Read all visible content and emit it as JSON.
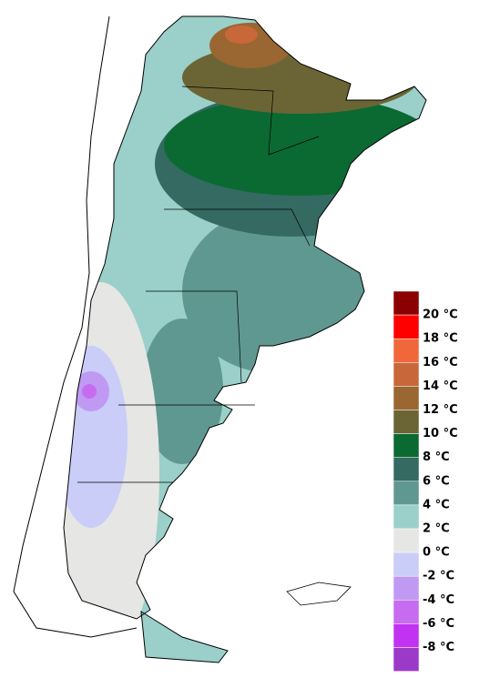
{
  "legend": {
    "labels": [
      "20 °C",
      "18 °C",
      "16 °C",
      "14 °C",
      "12 °C",
      "10 °C",
      "8 °C",
      "6 °C",
      "4 °C",
      "2 °C",
      "0 °C",
      "-2 °C",
      "-4 °C",
      "-6 °C",
      "-8 °C"
    ],
    "colors": [
      "#8b0000",
      "#ff0000",
      "#f0683a",
      "#c8683a",
      "#9a6632",
      "#6b6535",
      "#0b6a32",
      "#346a62",
      "#5f9890",
      "#9ad0c9",
      "#e6e6e4",
      "#c9cdf8",
      "#c09af2",
      "#c76cf0",
      "#c232f2",
      "#9b3ac8"
    ]
  }
}
